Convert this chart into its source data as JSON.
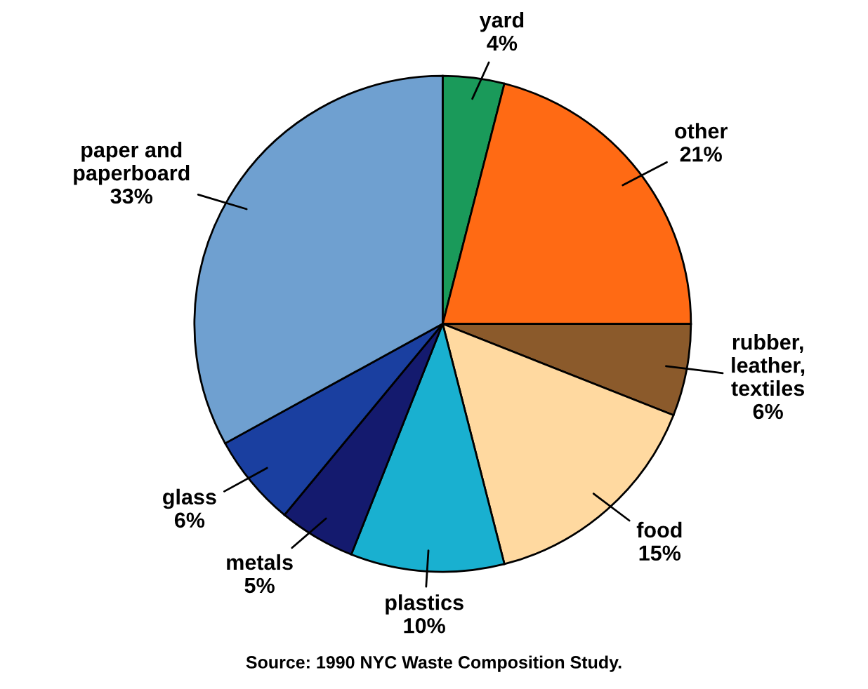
{
  "chart_data": {
    "type": "pie",
    "categories": [
      "yard",
      "other",
      "rubber,\nleather,\ntextiles",
      "food",
      "plastics",
      "metals",
      "glass",
      "paper and\npaperboard"
    ],
    "values": [
      4,
      21,
      6,
      15,
      10,
      5,
      6,
      33
    ],
    "colors": [
      "#1a9a5a",
      "#ff6a14",
      "#8b5a2b",
      "#ffd9a0",
      "#19b0d0",
      "#141a6e",
      "#1a3fa0",
      "#6fa0d0"
    ],
    "value_labels": [
      "4%",
      "21%",
      "6%",
      "15%",
      "10%",
      "5%",
      "6%",
      "33%"
    ],
    "annotations": [
      "Source: 1990 NYC Waste Composition Study."
    ]
  }
}
